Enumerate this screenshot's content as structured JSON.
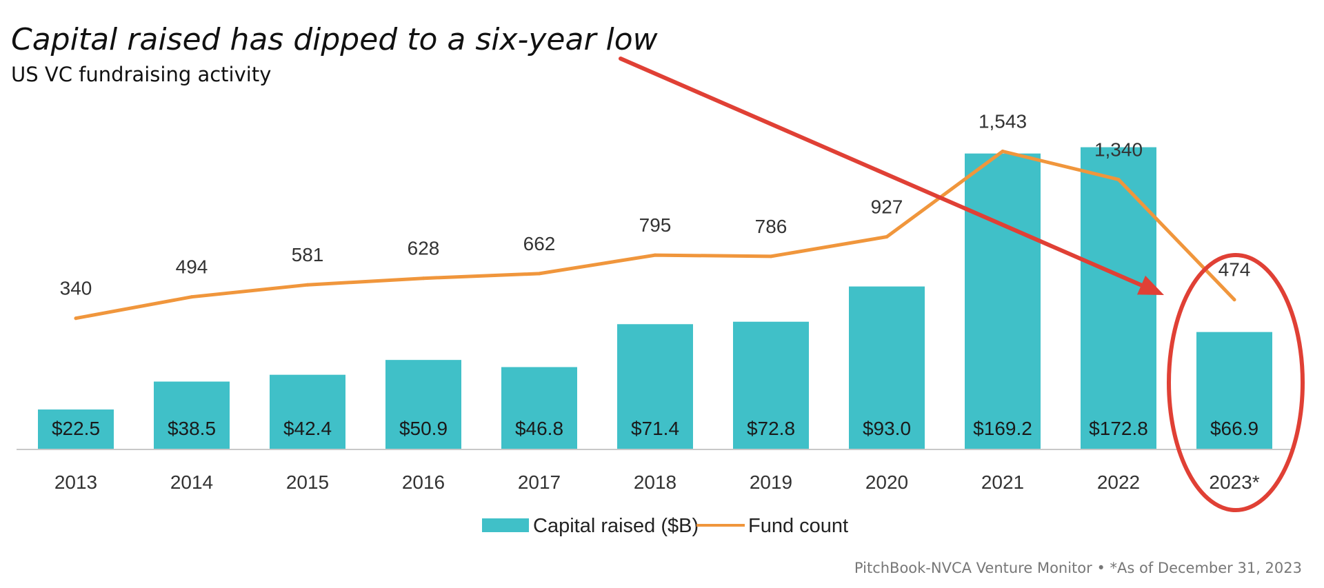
{
  "chart_data": {
    "type": "bar",
    "title": "Capital raised has dipped to a six-year low",
    "subtitle": "US VC fundraising activity",
    "categories": [
      "2013",
      "2014",
      "2015",
      "2016",
      "2017",
      "2018",
      "2019",
      "2020",
      "2021",
      "2022",
      "2023*"
    ],
    "series": [
      {
        "name": "Capital raised ($B)",
        "kind": "bar",
        "color": "#40C0C8",
        "values": [
          22.5,
          38.5,
          42.4,
          50.9,
          46.8,
          71.4,
          72.8,
          93.0,
          169.2,
          172.8,
          66.9
        ],
        "labels": [
          "$22.5",
          "$38.5",
          "$42.4",
          "$50.9",
          "$46.8",
          "$71.4",
          "$72.8",
          "$93.0",
          "$169.2",
          "$172.8",
          "$66.9"
        ]
      },
      {
        "name": "Fund count",
        "kind": "line",
        "color": "#F0963C",
        "values": [
          340,
          494,
          581,
          628,
          662,
          795,
          786,
          927,
          1543,
          1340,
          474
        ],
        "labels": [
          "340",
          "494",
          "581",
          "628",
          "662",
          "795",
          "786",
          "927",
          "1,543",
          "1,340",
          "474"
        ]
      }
    ],
    "bar_ylim": [
      0,
      175
    ],
    "line_ylim": [
      -600,
      1600
    ],
    "legend_position": "bottom-center",
    "grid": false,
    "annotations": {
      "arrow": "from title to 2023* bar",
      "circle": "around 2023* column",
      "color": "#E04035"
    },
    "source": "PitchBook-NVCA Venture Monitor • *As of December 31, 2023"
  }
}
